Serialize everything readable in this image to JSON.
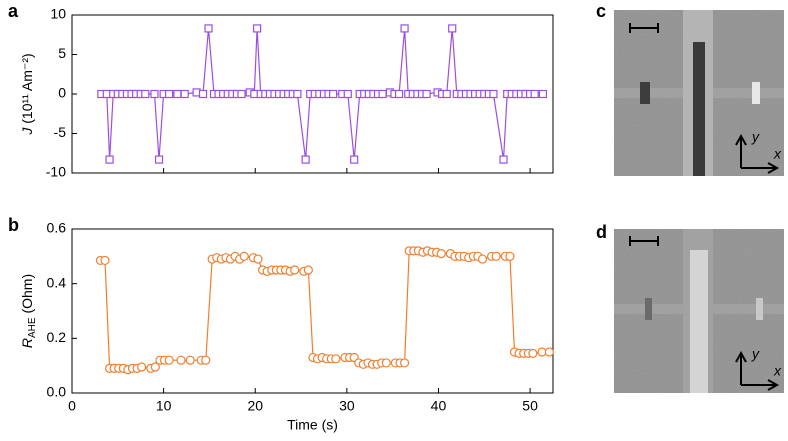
{
  "chart_data": [
    {
      "type": "line",
      "marker": "square",
      "color": "#9b4fe0",
      "panel_label": "a",
      "y_label": {
        "symbol": "J",
        "unit": "(10¹¹ Am⁻²)"
      },
      "x": [
        3.2,
        3.8,
        4.1,
        4.5,
        5.0,
        5.5,
        6.0,
        6.5,
        7.0,
        7.5,
        8.0,
        9.0,
        9.5,
        10.0,
        10.6,
        11.5,
        12.3,
        13.6,
        14.3,
        14.9,
        15.5,
        16.0,
        16.5,
        17.0,
        17.5,
        18.0,
        18.5,
        19.4,
        19.9,
        20.2,
        20.6,
        21.1,
        21.6,
        22.1,
        22.6,
        23.1,
        23.6,
        24.1,
        24.6,
        25.5,
        26.0,
        26.5,
        27.0,
        27.5,
        28.0,
        28.5,
        29.5,
        30.1,
        30.8,
        31.4,
        31.9,
        32.4,
        32.9,
        33.4,
        33.9,
        34.7,
        35.2,
        35.7,
        36.3,
        36.7,
        37.2,
        37.7,
        38.2,
        38.7,
        39.9,
        40.4,
        40.9,
        41.5,
        42.0,
        42.5,
        43.0,
        43.5,
        44.0,
        44.5,
        45.0,
        45.5,
        46.0,
        47.1,
        47.5,
        48.0,
        48.5,
        49.0,
        49.5,
        50.0,
        50.5,
        51.4
      ],
      "values": [
        0,
        0,
        -8.3,
        0,
        0,
        0,
        0,
        0,
        0,
        0,
        0,
        0,
        -8.3,
        0,
        0,
        0,
        0,
        0.2,
        0,
        8.3,
        0,
        0,
        0,
        0,
        0,
        0,
        0,
        0.2,
        0,
        8.3,
        0,
        0,
        0,
        0,
        0,
        0,
        0,
        0,
        0,
        -8.3,
        0,
        0,
        0,
        0,
        0,
        0,
        0,
        0,
        -8.3,
        0,
        0,
        0,
        0,
        0,
        0,
        0.2,
        0,
        0,
        8.3,
        0,
        0,
        0,
        0,
        0,
        0.2,
        0,
        0,
        8.3,
        0,
        0,
        0,
        0,
        0,
        0,
        0,
        0,
        0,
        -8.3,
        0,
        0,
        0,
        0,
        0,
        0,
        0,
        0
      ],
      "xlim": [
        0,
        52.5
      ],
      "xticks": [
        0,
        10,
        20,
        30,
        40,
        50
      ],
      "ylim": [
        -10,
        10
      ],
      "yticks": [
        -10,
        -5,
        0,
        5,
        10
      ]
    },
    {
      "type": "line",
      "marker": "circle",
      "color": "#f07f2f",
      "panel_label": "b",
      "y_label": {
        "symbol": "R",
        "subscript": "AHE",
        "unit": "(Ohm)"
      },
      "x_label": "Time (s)",
      "x": [
        3.1,
        3.6,
        4.1,
        4.6,
        5.1,
        5.6,
        6.1,
        6.6,
        7.1,
        7.6,
        8.6,
        9.1,
        9.6,
        10.1,
        10.6,
        11.9,
        12.9,
        14.1,
        14.6,
        15.3,
        15.8,
        16.3,
        16.8,
        17.3,
        17.8,
        18.3,
        18.8,
        19.8,
        20.3,
        20.8,
        21.3,
        21.8,
        22.3,
        22.8,
        23.3,
        23.8,
        24.3,
        25.3,
        25.8,
        26.3,
        26.8,
        27.3,
        27.8,
        28.3,
        28.8,
        29.8,
        30.3,
        30.8,
        31.3,
        31.8,
        32.3,
        32.8,
        33.3,
        33.8,
        34.3,
        35.3,
        35.8,
        36.3,
        36.8,
        37.3,
        37.8,
        38.3,
        38.8,
        39.3,
        39.8,
        40.3,
        41.3,
        41.8,
        42.3,
        42.8,
        43.3,
        43.8,
        44.3,
        44.8,
        45.8,
        46.3,
        47.3,
        47.8,
        48.3,
        48.8,
        49.3,
        49.8,
        50.3,
        51.3,
        52.1
      ],
      "values": [
        0.485,
        0.485,
        0.09,
        0.09,
        0.09,
        0.09,
        0.085,
        0.09,
        0.09,
        0.095,
        0.09,
        0.095,
        0.12,
        0.12,
        0.12,
        0.12,
        0.12,
        0.12,
        0.12,
        0.49,
        0.495,
        0.49,
        0.495,
        0.49,
        0.5,
        0.49,
        0.5,
        0.495,
        0.49,
        0.45,
        0.445,
        0.45,
        0.45,
        0.45,
        0.45,
        0.445,
        0.45,
        0.445,
        0.45,
        0.13,
        0.125,
        0.13,
        0.125,
        0.125,
        0.125,
        0.13,
        0.13,
        0.13,
        0.11,
        0.105,
        0.11,
        0.105,
        0.105,
        0.11,
        0.11,
        0.11,
        0.11,
        0.11,
        0.52,
        0.52,
        0.52,
        0.515,
        0.52,
        0.515,
        0.515,
        0.51,
        0.51,
        0.5,
        0.5,
        0.5,
        0.495,
        0.5,
        0.5,
        0.49,
        0.5,
        0.5,
        0.5,
        0.5,
        0.15,
        0.145,
        0.145,
        0.145,
        0.145,
        0.15,
        0.15
      ],
      "xlim": [
        0,
        52.5
      ],
      "xticks": [
        0,
        10,
        20,
        30,
        40,
        50
      ],
      "ylim": [
        0,
        0.6
      ],
      "yticks": [
        {
          "value": 0,
          "label": "0.0"
        },
        0.2,
        0.4,
        0.6
      ]
    }
  ],
  "images": [
    {
      "label": "c",
      "axis_x": "x",
      "axis_y": "y"
    },
    {
      "label": "d",
      "axis_x": "x",
      "axis_y": "y"
    }
  ]
}
